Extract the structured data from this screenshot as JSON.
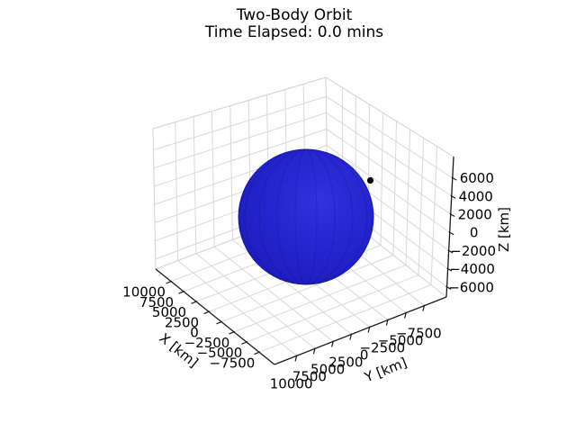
{
  "chart_data": {
    "type": "scatter",
    "projection": "3d",
    "title": "Two-Body Orbit",
    "subtitle": "Time Elapsed: 0.0 mins",
    "grid": true,
    "legend": false,
    "axes": {
      "x": {
        "label": "X [km]",
        "tick_values": [
          10000,
          7500,
          5000,
          2500,
          0,
          -2500,
          -5000,
          -7500
        ],
        "tick_labels": [
          "10000",
          "7500",
          "5000",
          "2500",
          "0",
          "−2500",
          "−5000",
          "−7500"
        ]
      },
      "y": {
        "label": "Y [km]",
        "tick_values": [
          10000,
          7500,
          5000,
          2500,
          0,
          -2500,
          -5000,
          -7500
        ],
        "tick_labels": [
          "10000",
          "7500",
          "5000",
          "2500",
          "0",
          "−2500",
          "−5000",
          "−7500"
        ]
      },
      "z": {
        "label": "Z [km]",
        "tick_values": [
          6000,
          4000,
          2000,
          0,
          -2000,
          -4000,
          -6000
        ],
        "tick_labels": [
          "6000",
          "4000",
          "2000",
          "0",
          "−2000",
          "−4000",
          "−6000"
        ]
      }
    },
    "series": [
      {
        "name": "Earth",
        "kind": "sphere_surface",
        "color": "#2424cc"
      },
      {
        "name": "Satellite",
        "kind": "point",
        "color": "#000000"
      }
    ],
    "colors": {
      "grid": "#d9d9d9",
      "pane_edge": "#d2d2d2",
      "spine": "#1a1a1a",
      "text": "#000000",
      "earth_base": "#2525cf",
      "earth_light": "#3232de",
      "earth_dark": "#1818b2",
      "satellite": "#000000",
      "background": "#ffffff"
    }
  }
}
